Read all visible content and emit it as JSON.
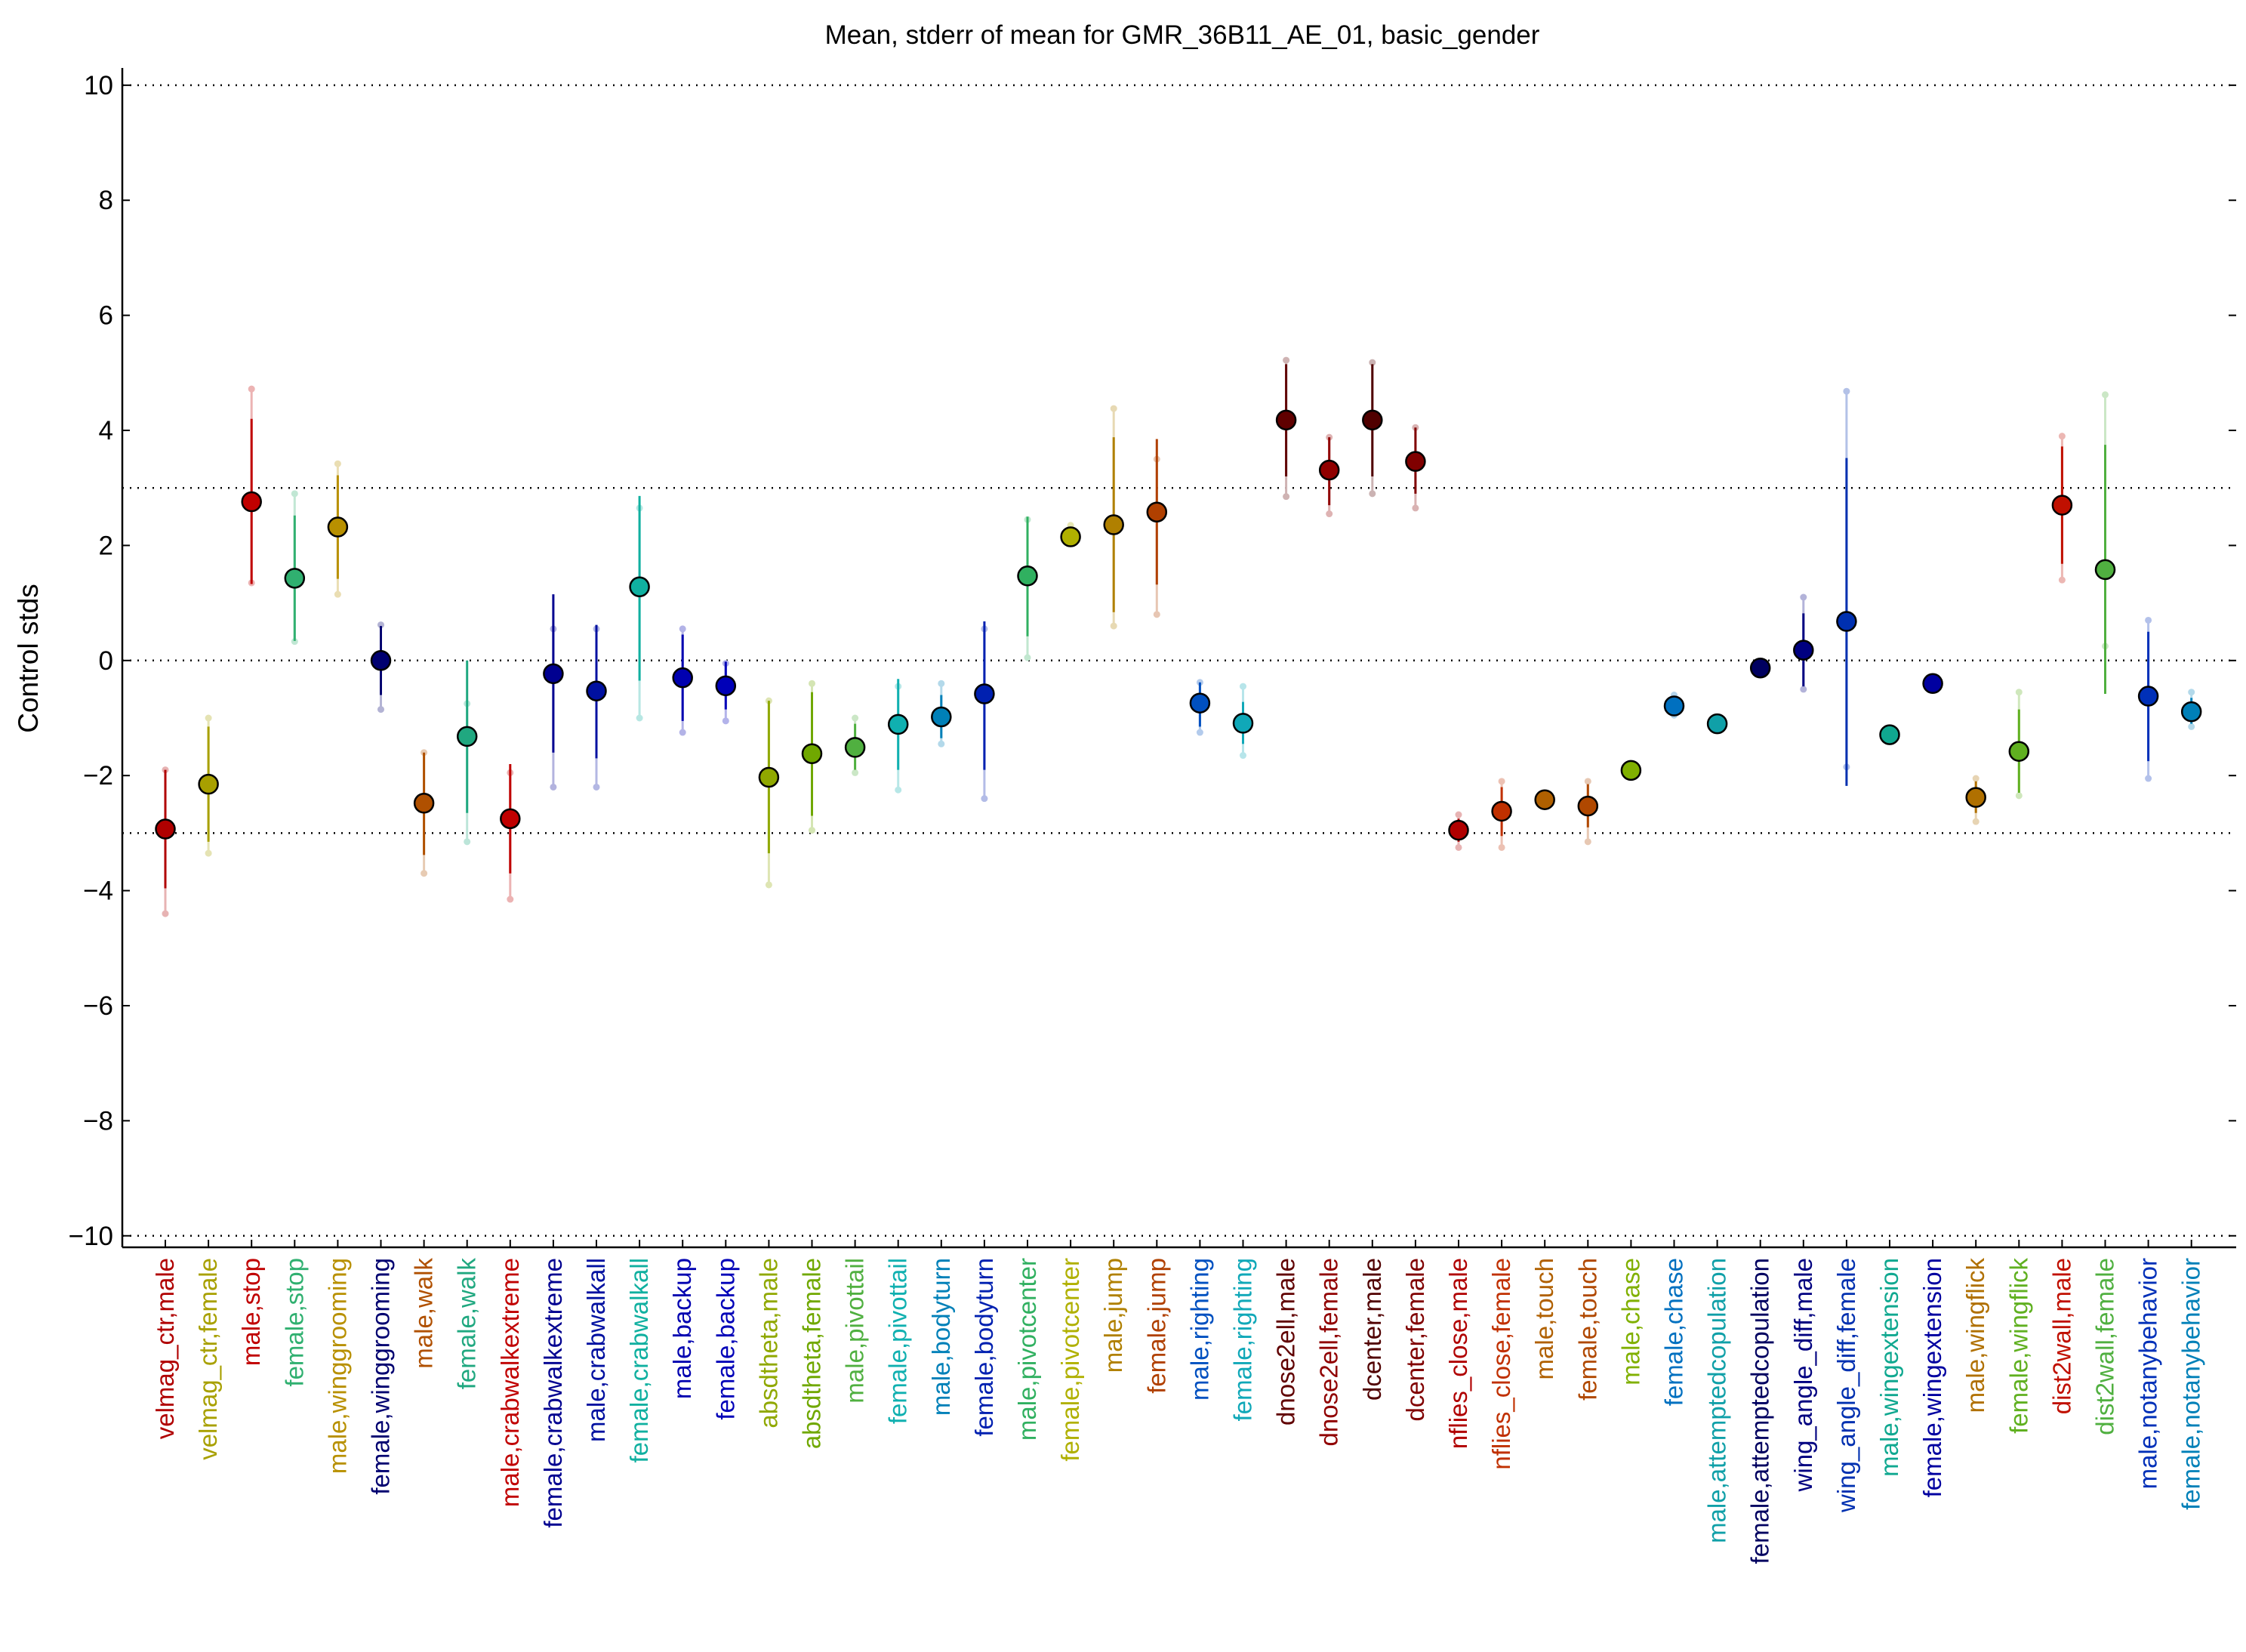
{
  "chart_data": {
    "type": "scatter",
    "title": "Mean, stderr of mean for GMR_36B11_AE_01, basic_gender",
    "xlabel": "",
    "ylabel": "Control stds",
    "ylim": [
      -10.2,
      10.3
    ],
    "yticks": [
      10,
      8,
      6,
      4,
      2,
      0,
      -2,
      -4,
      -6,
      -8,
      -10
    ],
    "ytick_labels": [
      "10",
      "8",
      "6",
      "4",
      "2",
      "0",
      "−2",
      "−4",
      "−6",
      "−8",
      "−10"
    ],
    "reference_lines": [
      10,
      3,
      0,
      -3,
      -10
    ],
    "grid": false,
    "legend": "none",
    "categories": [
      "velmag_ctr,male",
      "velmag_ctr,female",
      "male,stop",
      "female,stop",
      "male,winggrooming",
      "female,winggrooming",
      "male,walk",
      "female,walk",
      "male,crabwalkextreme",
      "female,crabwalkextreme",
      "male,crabwalkall",
      "female,crabwalkall",
      "male,backup",
      "female,backup",
      "absdtheta,male",
      "absdtheta,female",
      "male,pivottail",
      "female,pivottail",
      "male,bodyturn",
      "female,bodyturn",
      "male,pivotcenter",
      "female,pivotcenter",
      "male,jump",
      "female,jump",
      "male,righting",
      "female,righting",
      "dnose2ell,male",
      "dnose2ell,female",
      "dcenter,male",
      "dcenter,female",
      "nflies_close,male",
      "nflies_close,female",
      "male,touch",
      "female,touch",
      "male,chase",
      "female,chase",
      "male,attemptedcopulation",
      "female,attemptedcopulation",
      "wing_angle_diff,male",
      "wing_angle_diff,female",
      "male,wingextension",
      "female,wingextension",
      "male,wingflick",
      "female,wingflick",
      "dist2wall,male",
      "dist2wall,female",
      "male,notanybehavior",
      "female,notanybehavior"
    ],
    "colors": [
      "#b00000",
      "#a8a000",
      "#c00000",
      "#30b070",
      "#b89000",
      "#000070",
      "#b05000",
      "#20a880",
      "#c00000",
      "#000090",
      "#0010a0",
      "#10b0a0",
      "#0000b0",
      "#0000b8",
      "#90a800",
      "#70a800",
      "#50b040",
      "#10b0b0",
      "#0080b8",
      "#0020b0",
      "#30b060",
      "#b0b000",
      "#b08000",
      "#b04000",
      "#0050c0",
      "#10a8b8",
      "#600000",
      "#900000",
      "#500000",
      "#800000",
      "#b00000",
      "#c03000",
      "#b06000",
      "#b04800",
      "#80b000",
      "#0070c0",
      "#10a0a8",
      "#000060",
      "#000080",
      "#0030b0",
      "#10a890",
      "#0000a0",
      "#b07000",
      "#60b020",
      "#c01000",
      "#50b040",
      "#0030b8",
      "#0080b8"
    ],
    "series": [
      {
        "name": "mean",
        "values": [
          -2.93,
          -2.15,
          2.76,
          1.43,
          2.32,
          0.0,
          -2.48,
          -1.32,
          -2.75,
          -0.23,
          -0.53,
          1.28,
          -0.3,
          -0.44,
          -2.03,
          -1.62,
          -1.51,
          -1.11,
          -0.98,
          -0.58,
          1.47,
          2.15,
          2.36,
          2.58,
          -0.74,
          -1.09,
          4.18,
          3.31,
          4.18,
          3.46,
          -2.95,
          -2.62,
          -2.42,
          -2.53,
          -1.91,
          -0.79,
          -1.1,
          -0.13,
          0.18,
          0.68,
          -1.29,
          -0.4,
          -2.38,
          -1.58,
          2.7,
          1.58,
          -0.62,
          -0.89
        ]
      },
      {
        "name": "stderr_low",
        "values": [
          -3.96,
          -3.15,
          1.33,
          0.34,
          1.42,
          -0.6,
          -3.38,
          -2.65,
          -3.7,
          -1.6,
          -1.7,
          -0.35,
          -1.05,
          -0.85,
          -3.35,
          -2.7,
          -1.9,
          -1.9,
          -1.35,
          -1.9,
          0.42,
          2.05,
          0.84,
          1.32,
          -1.15,
          -1.45,
          3.2,
          2.7,
          3.2,
          2.9,
          -3.15,
          -3.05,
          -2.5,
          -2.9,
          -1.98,
          -0.95,
          -1.15,
          -0.18,
          -0.45,
          -2.18,
          -1.35,
          -0.46,
          -2.65,
          -2.3,
          1.68,
          -0.58,
          -1.75,
          -1.1
        ]
      },
      {
        "name": "stderr_high",
        "values": [
          -1.9,
          -1.15,
          4.2,
          2.52,
          3.22,
          0.6,
          -1.6,
          0.0,
          -1.8,
          1.15,
          0.62,
          2.86,
          0.45,
          -0.02,
          -0.7,
          -0.55,
          -1.1,
          -0.32,
          -0.6,
          0.68,
          2.5,
          2.25,
          3.88,
          3.85,
          -0.38,
          -0.72,
          5.15,
          3.88,
          5.15,
          4.05,
          -2.75,
          -2.2,
          -2.34,
          -2.15,
          -1.84,
          -0.63,
          -1.05,
          -0.08,
          0.82,
          3.52,
          -1.23,
          -0.34,
          -2.1,
          -0.85,
          3.72,
          3.75,
          0.5,
          -0.65
        ]
      },
      {
        "name": "range_low",
        "values": [
          -4.4,
          -3.35,
          1.35,
          0.33,
          1.15,
          -0.85,
          -3.7,
          -3.15,
          -4.15,
          -2.2,
          -2.2,
          -1.0,
          -1.25,
          -1.05,
          -3.9,
          -2.95,
          -1.95,
          -2.25,
          -1.45,
          -2.4,
          0.05,
          2.05,
          0.6,
          0.8,
          -1.25,
          -1.65,
          2.85,
          2.55,
          2.9,
          2.65,
          -3.25,
          -3.25,
          -2.5,
          -3.15,
          -1.98,
          -0.95,
          -1.15,
          -0.18,
          -0.5,
          -1.85,
          -1.35,
          -0.46,
          -2.8,
          -2.35,
          1.4,
          0.25,
          -2.05,
          -1.15
        ]
      },
      {
        "name": "range_high",
        "values": [
          -1.9,
          -1.0,
          4.72,
          2.9,
          3.42,
          0.62,
          -1.6,
          -0.75,
          -1.95,
          0.55,
          0.55,
          2.65,
          0.55,
          -0.05,
          -0.7,
          -0.4,
          -1.0,
          -0.45,
          -0.4,
          0.55,
          2.45,
          2.35,
          4.38,
          3.5,
          -0.38,
          -0.45,
          5.22,
          3.88,
          5.18,
          4.05,
          -2.68,
          -2.1,
          -2.34,
          -2.1,
          -1.84,
          -0.6,
          -1.05,
          -0.08,
          1.1,
          4.68,
          -1.23,
          -0.34,
          -2.05,
          -0.55,
          3.9,
          4.62,
          0.7,
          -0.55
        ]
      }
    ]
  }
}
